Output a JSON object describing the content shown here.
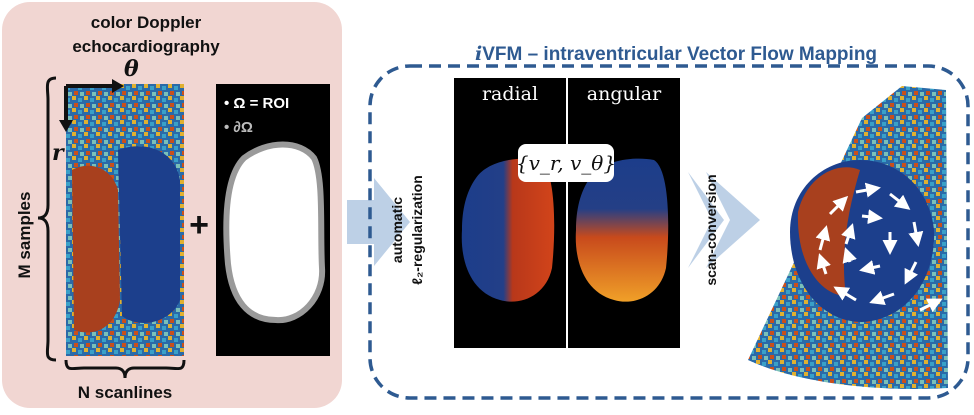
{
  "left_panel": {
    "title_line1": "color Doppler",
    "title_line2": "echocardiography",
    "theta_label": "θ",
    "r_label": "r",
    "m_samples_label": "M samples",
    "n_scanlines_label": "N scanlines",
    "plus_sign": "+",
    "roi_legend_omega": "• Ω = ROI",
    "roi_legend_boundary": "• ∂Ω"
  },
  "ivfm_panel": {
    "title_i": "i",
    "title_rest": "VFM – intraventricular Vector Flow Mapping",
    "radial_label": "radial",
    "angular_label": "angular",
    "vector_label": "{v_r, v_θ}",
    "regularization_line1": "automatic",
    "regularization_line2": "ℓ₂-regularization",
    "scan_conversion_label": "scan-conversion"
  },
  "colors": {
    "left_panel_bg": "#f1d6d2",
    "dashed_border": "#2e5a91",
    "title_blue": "#2e5a91",
    "arrow_fill": "#bdd0e6",
    "flow_red": "#c8401c",
    "flow_blue": "#1c3f8c"
  }
}
